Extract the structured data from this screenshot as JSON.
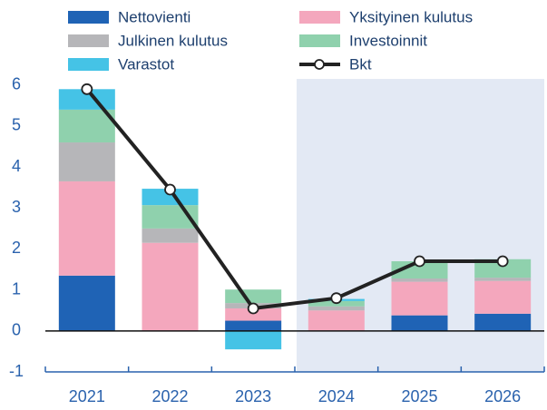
{
  "chart_data": {
    "type": "bar",
    "categories": [
      "2021",
      "2022",
      "2023",
      "2024",
      "2025",
      "2026"
    ],
    "series": [
      {
        "name": "Nettovienti",
        "color": "#1f63b5",
        "values": [
          1.35,
          0,
          0.25,
          0,
          0.38,
          0.42
        ]
      },
      {
        "name": "Yksityinen kulutus",
        "color": "#f4a7bd",
        "values": [
          2.3,
          2.15,
          0.3,
          0.5,
          0.82,
          0.8
        ]
      },
      {
        "name": "Julkinen kulutus",
        "color": "#b6b6b9",
        "values": [
          0.95,
          0.35,
          0.13,
          0.1,
          0.08,
          0.08
        ]
      },
      {
        "name": "Investoinnit",
        "color": "#8fd1ad",
        "values": [
          0.8,
          0.57,
          0.33,
          0.13,
          0.42,
          0.45
        ]
      },
      {
        "name": "Varastot",
        "color": "#45c3e6",
        "values": [
          0.5,
          0.4,
          -0.45,
          0.05,
          0,
          0
        ]
      },
      {
        "name": "Bkt",
        "type": "line",
        "color": "#222222",
        "values": [
          5.9,
          3.45,
          0.55,
          0.8,
          1.7,
          1.7
        ]
      }
    ],
    "ylim": [
      -1,
      6.15
    ],
    "yticks": [
      -1,
      0,
      1,
      2,
      3,
      4,
      5,
      6
    ]
  }
}
